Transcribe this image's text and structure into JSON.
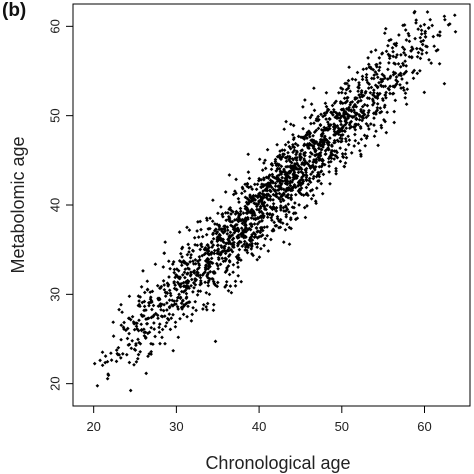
{
  "panel_label": "(b)",
  "chart_data": {
    "type": "scatter",
    "xlabel": "Chronological age",
    "ylabel": "Metabolomic age",
    "xlim": [
      17.5,
      65.5
    ],
    "ylim": [
      17.5,
      62.5
    ],
    "xticks": [
      20,
      30,
      40,
      50,
      60
    ],
    "yticks": [
      20,
      30,
      40,
      50,
      60
    ],
    "grid": false,
    "point_color": "#000000",
    "n_points": 2000,
    "trend": {
      "slope": 0.93,
      "intercept": 2.5,
      "residual_sd": 2.4
    },
    "x_range": [
      19,
      65
    ],
    "x_peak": 43
  }
}
